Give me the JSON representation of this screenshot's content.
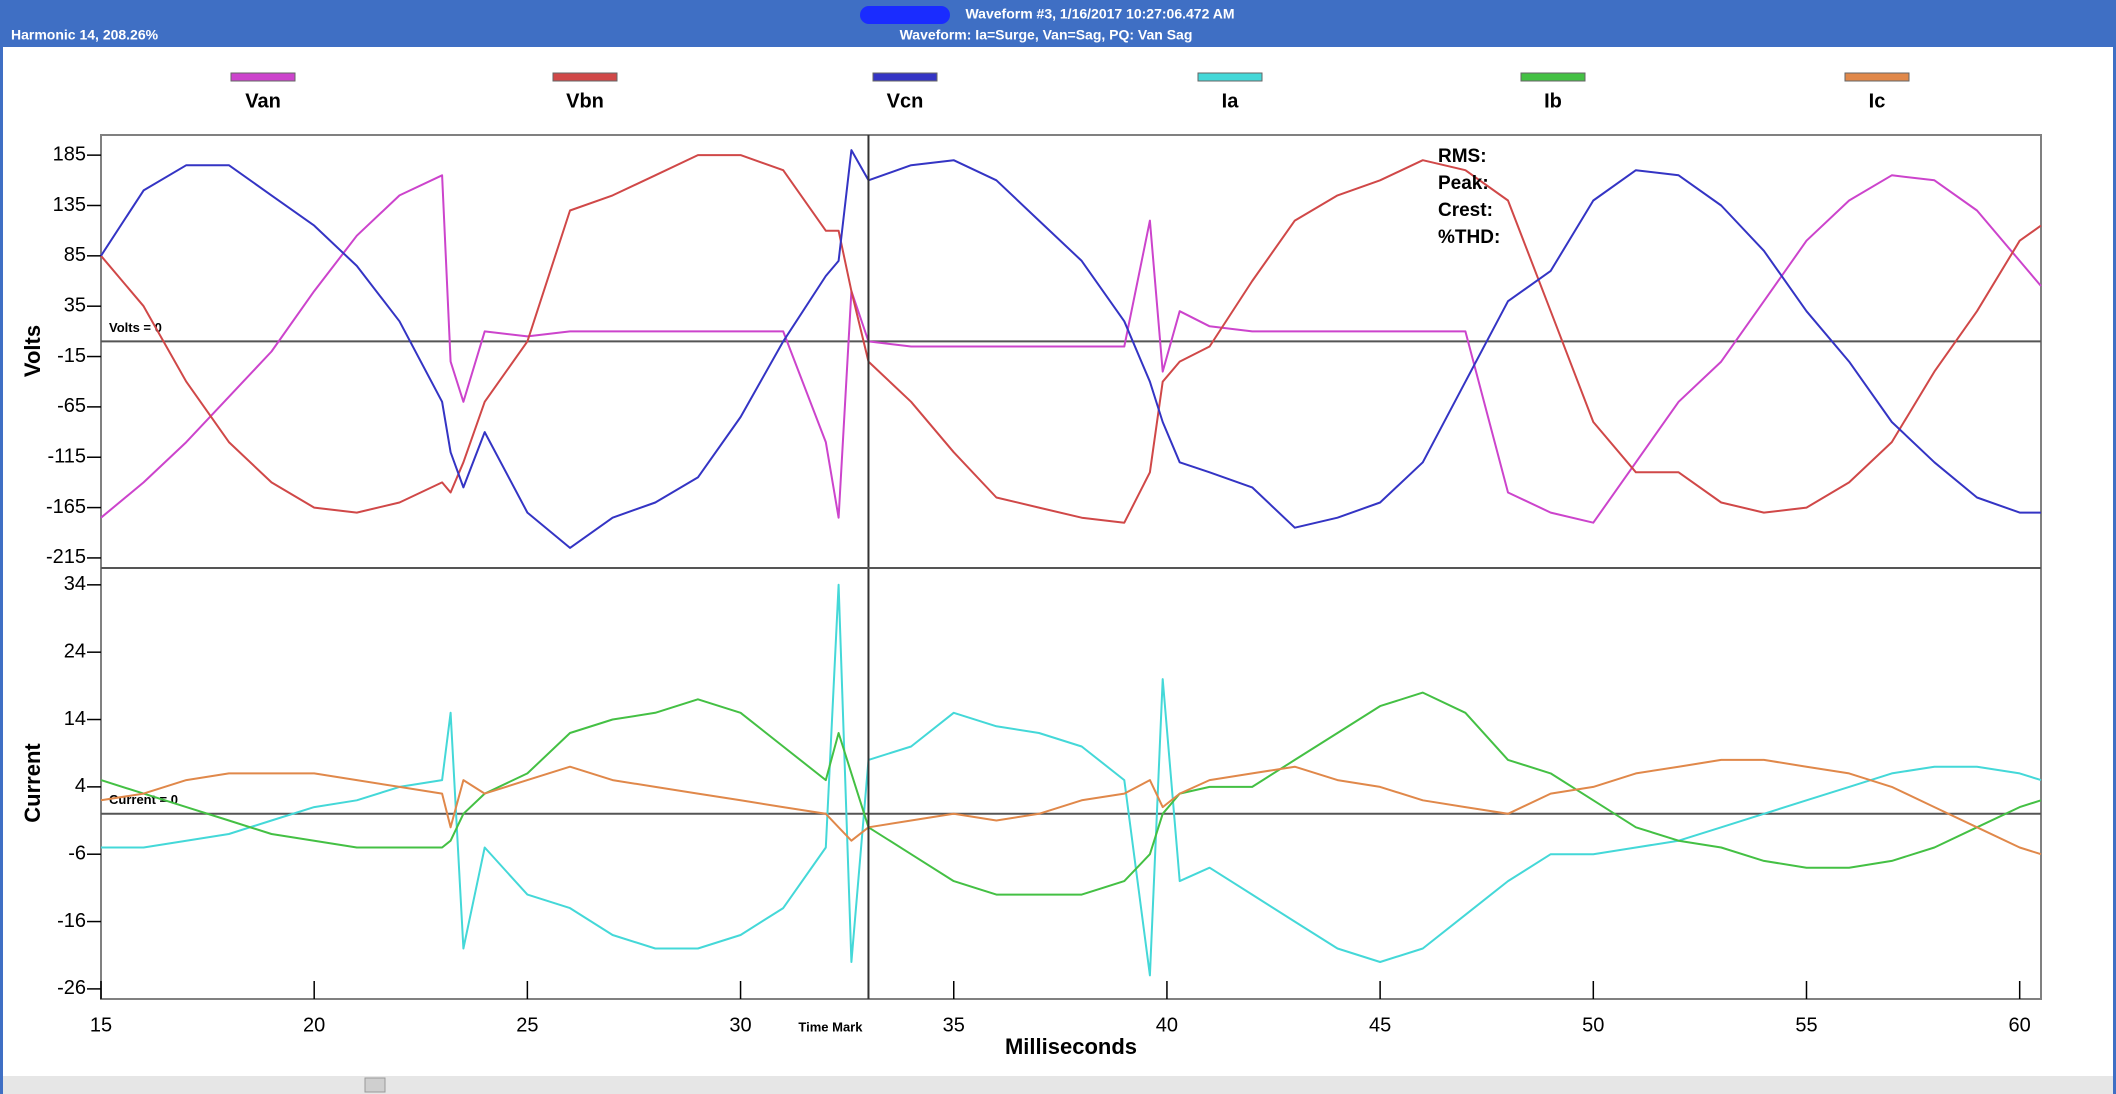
{
  "window": {
    "status": "Harmonic 14, 208.26%",
    "title": "Waveform #3, 1/16/2017 10:27:06.472 AM",
    "subtitle": "Waveform: Ia=Surge, Van=Sag, PQ: Van Sag"
  },
  "chart_data": [
    {
      "type": "line",
      "ylabel": "Volts",
      "xlim": [
        15,
        60.5
      ],
      "ylim": [
        -225,
        205
      ],
      "yticks": [
        185,
        135,
        85,
        35,
        -15,
        -65,
        -115,
        -165,
        -215
      ],
      "zero_line": {
        "label": "Volts = 0",
        "value": 0
      },
      "annotations": [
        "RMS:",
        "Peak:",
        "Crest:",
        "%THD:"
      ],
      "x": [
        15,
        16,
        17,
        18,
        19,
        20,
        21,
        22,
        23,
        23.2,
        23.5,
        24,
        25,
        26,
        27,
        28,
        29,
        30,
        31,
        32,
        32.3,
        32.6,
        33,
        34,
        35,
        36,
        37,
        38,
        39,
        39.6,
        39.9,
        40.3,
        41,
        42,
        43,
        44,
        45,
        46,
        47,
        48,
        49,
        50,
        51,
        52,
        53,
        54,
        55,
        56,
        57,
        58,
        59,
        60,
        60.5
      ],
      "series": [
        {
          "name": "Van",
          "color": "#cc44cc",
          "values": [
            -175,
            -140,
            -100,
            -55,
            -10,
            50,
            105,
            145,
            165,
            -20,
            -60,
            10,
            5,
            10,
            10,
            10,
            10,
            10,
            10,
            -100,
            -175,
            50,
            0,
            -5,
            -5,
            -5,
            -5,
            -5,
            -5,
            120,
            -30,
            30,
            15,
            10,
            10,
            10,
            10,
            10,
            10,
            -150,
            -170,
            -180,
            -120,
            -60,
            -20,
            40,
            100,
            140,
            165,
            160,
            130,
            80,
            55
          ]
        },
        {
          "name": "Vbn",
          "color": "#d04848",
          "values": [
            85,
            35,
            -40,
            -100,
            -140,
            -165,
            -170,
            -160,
            -140,
            -150,
            -120,
            -60,
            0,
            130,
            145,
            165,
            185,
            185,
            170,
            110,
            110,
            50,
            -20,
            -60,
            -110,
            -155,
            -165,
            -175,
            -180,
            -130,
            -40,
            -20,
            -5,
            60,
            120,
            145,
            160,
            180,
            170,
            140,
            30,
            -80,
            -130,
            -130,
            -160,
            -170,
            -165,
            -140,
            -100,
            -30,
            30,
            100,
            115
          ]
        },
        {
          "name": "Vcn",
          "color": "#3434c4",
          "values": [
            85,
            150,
            175,
            175,
            145,
            115,
            75,
            20,
            -60,
            -110,
            -145,
            -90,
            -170,
            -205,
            -175,
            -160,
            -135,
            -75,
            0,
            65,
            80,
            190,
            160,
            175,
            180,
            160,
            120,
            80,
            20,
            -40,
            -80,
            -120,
            -130,
            -145,
            -185,
            -175,
            -160,
            -120,
            -40,
            40,
            70,
            140,
            170,
            165,
            135,
            90,
            30,
            -20,
            -80,
            -120,
            -155,
            -170,
            -170
          ]
        }
      ]
    },
    {
      "type": "line",
      "ylabel": "Current",
      "xlabel": "Milliseconds",
      "xlim": [
        15,
        60.5
      ],
      "ylim": [
        -27.5,
        36.5
      ],
      "yticks": [
        34,
        24,
        14,
        4,
        -6,
        -16,
        -26
      ],
      "xticks": [
        15,
        20,
        25,
        30,
        35,
        40,
        45,
        50,
        55,
        60
      ],
      "zero_line": {
        "label": "Current = 0",
        "value": 0
      },
      "time_mark": {
        "label": "Time Mark",
        "x": 33
      },
      "x": [
        15,
        16,
        17,
        18,
        19,
        20,
        21,
        22,
        23,
        23.2,
        23.5,
        24,
        25,
        26,
        27,
        28,
        29,
        30,
        31,
        32,
        32.3,
        32.6,
        33,
        34,
        35,
        36,
        37,
        38,
        39,
        39.6,
        39.9,
        40.3,
        41,
        42,
        43,
        44,
        45,
        46,
        47,
        48,
        49,
        50,
        51,
        52,
        53,
        54,
        55,
        56,
        57,
        58,
        59,
        60,
        60.5
      ],
      "series": [
        {
          "name": "Ia",
          "color": "#44d8d8",
          "values": [
            -5,
            -5,
            -4,
            -3,
            -1,
            1,
            2,
            4,
            5,
            15,
            -20,
            -5,
            -12,
            -14,
            -18,
            -20,
            -20,
            -18,
            -14,
            -5,
            34,
            -22,
            8,
            10,
            15,
            13,
            12,
            10,
            5,
            -24,
            20,
            -10,
            -8,
            -12,
            -16,
            -20,
            -22,
            -20,
            -15,
            -10,
            -6,
            -6,
            -5,
            -4,
            -2,
            0,
            2,
            4,
            6,
            7,
            7,
            6,
            5
          ]
        },
        {
          "name": "Ib",
          "color": "#44c044",
          "values": [
            5,
            3,
            1,
            -1,
            -3,
            -4,
            -5,
            -5,
            -5,
            -4,
            0,
            3,
            6,
            12,
            14,
            15,
            17,
            15,
            10,
            5,
            12,
            6,
            -2,
            -6,
            -10,
            -12,
            -12,
            -12,
            -10,
            -6,
            0,
            3,
            4,
            4,
            8,
            12,
            16,
            18,
            15,
            8,
            6,
            2,
            -2,
            -4,
            -5,
            -7,
            -8,
            -8,
            -7,
            -5,
            -2,
            1,
            2
          ]
        },
        {
          "name": "Ic",
          "color": "#e0884a",
          "values": [
            2,
            3,
            5,
            6,
            6,
            6,
            5,
            4,
            3,
            -2,
            5,
            3,
            5,
            7,
            5,
            4,
            3,
            2,
            1,
            0,
            -2,
            -4,
            -2,
            -1,
            0,
            -1,
            0,
            2,
            3,
            5,
            1,
            3,
            5,
            6,
            7,
            5,
            4,
            2,
            1,
            0,
            3,
            4,
            6,
            7,
            8,
            8,
            7,
            6,
            4,
            1,
            -2,
            -5,
            -6
          ]
        }
      ]
    }
  ]
}
